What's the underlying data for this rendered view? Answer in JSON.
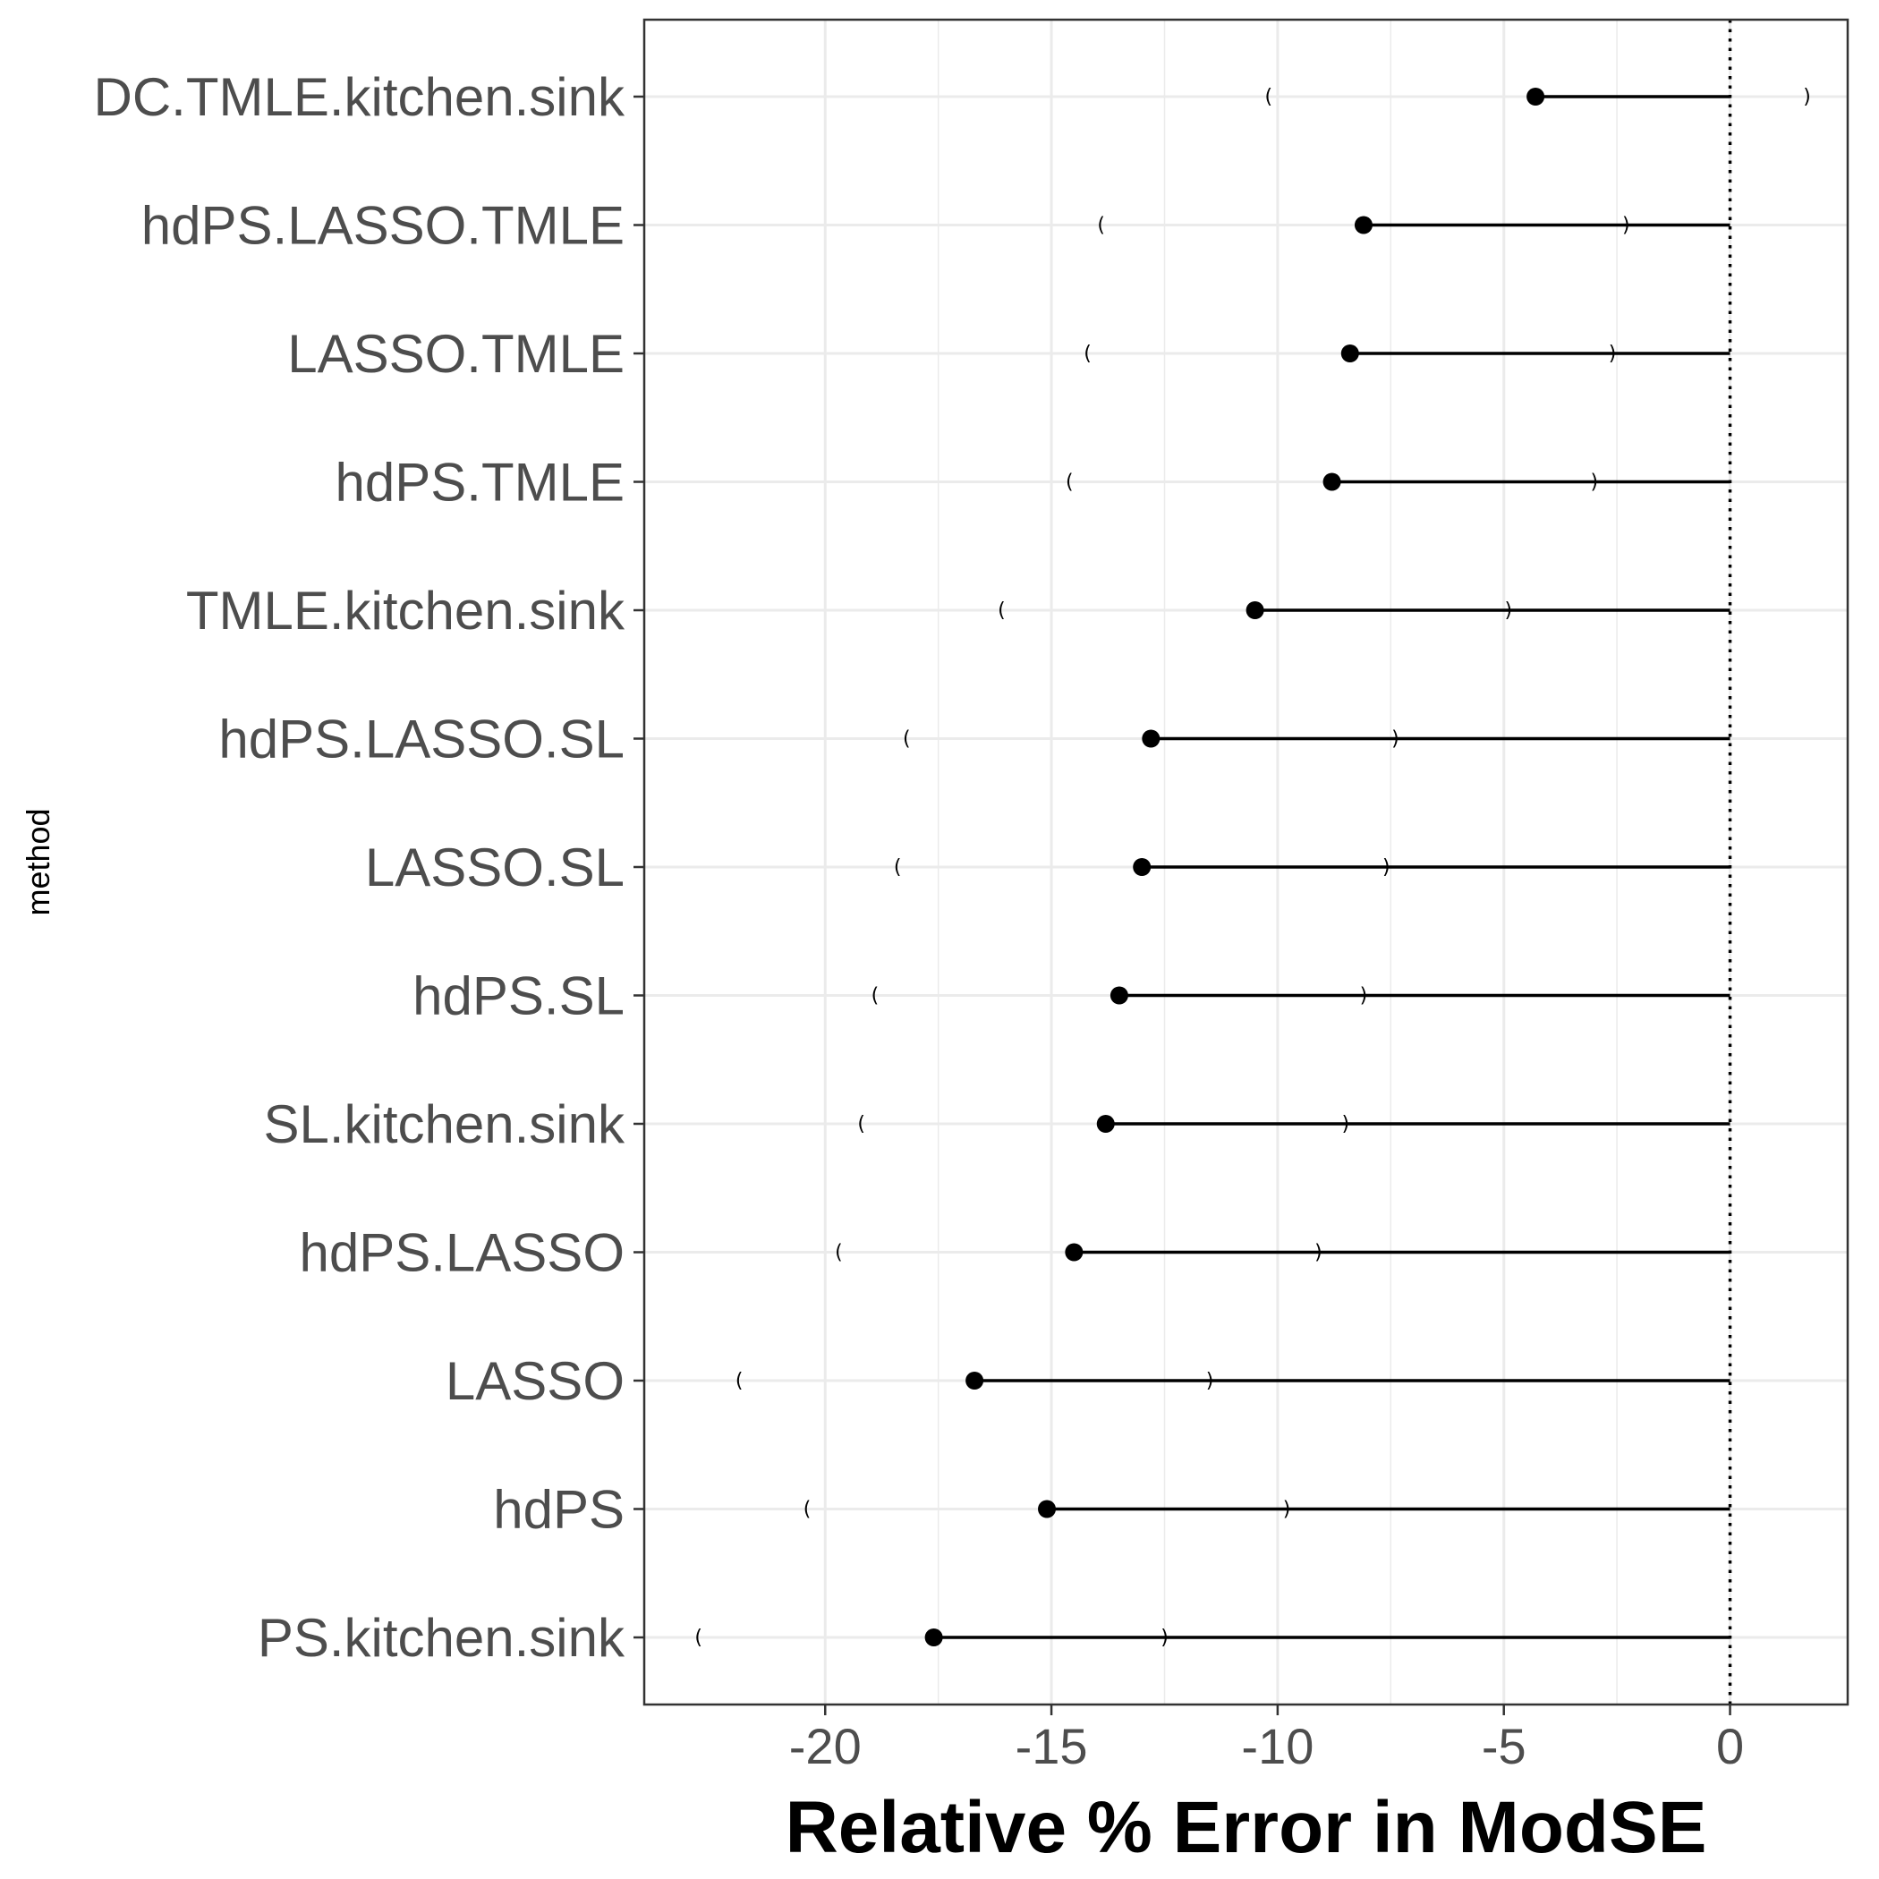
{
  "chart_data": {
    "type": "dot-range",
    "xlabel": "Relative % Error in ModSE",
    "ylabel": "method",
    "xlim": [
      -24,
      2.6
    ],
    "x_ticks": [
      -20,
      -15,
      -10,
      -5,
      0
    ],
    "x_tick_labels": [
      "-20",
      "-15",
      "-10",
      "-5",
      "0"
    ],
    "reference_line": {
      "x": 0,
      "style": "dotted"
    },
    "grid": true,
    "background": "#ffffff",
    "colors": {
      "points": "#000000",
      "segments": "#000000",
      "grid": "#ebebeb",
      "panel_border": "#333333"
    },
    "categories": [
      "DC.TMLE.kitchen.sink",
      "hdPS.LASSO.TMLE",
      "LASSO.TMLE",
      "hdPS.TMLE",
      "TMLE.kitchen.sink",
      "hdPS.LASSO.SL",
      "LASSO.SL",
      "hdPS.SL",
      "SL.kitchen.sink",
      "hdPS.LASSO",
      "LASSO",
      "hdPS",
      "PS.kitchen.sink"
    ],
    "values": [
      -4.3,
      -8.1,
      -8.4,
      -8.8,
      -10.5,
      -12.8,
      -13.0,
      -13.5,
      -13.8,
      -14.5,
      -16.7,
      -15.1,
      -17.6
    ],
    "ci_lower": [
      -10.2,
      -13.9,
      -14.2,
      -14.6,
      -16.1,
      -18.2,
      -18.4,
      -18.9,
      -19.2,
      -19.7,
      -21.9,
      -20.4,
      -22.8
    ],
    "ci_upper": [
      1.7,
      -2.3,
      -2.6,
      -3.0,
      -4.9,
      -7.4,
      -7.6,
      -8.1,
      -8.5,
      -9.1,
      -11.5,
      -9.8,
      -12.5
    ]
  }
}
